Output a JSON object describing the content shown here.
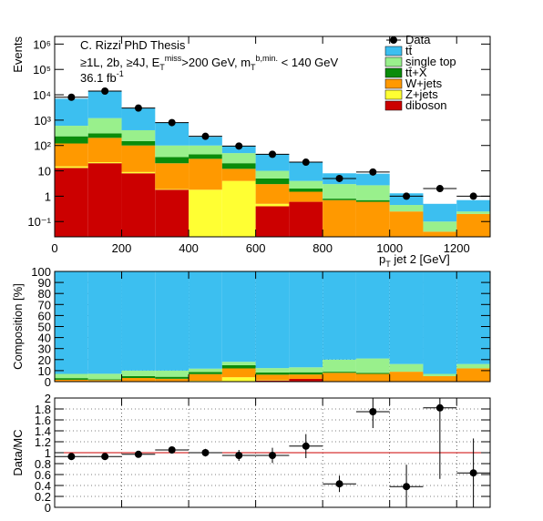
{
  "chart_data": [
    {
      "type": "stacked-histogram",
      "log": true,
      "ylabel": "Events",
      "xlabel": [
        {
          "text": "p"
        },
        {
          "text": "T",
          "shift": "sub"
        },
        {
          "text": " jet 2 [GeV]"
        }
      ],
      "annotations": [
        [
          {
            "text": "C. Rizzi PhD Thesis"
          }
        ],
        [
          {
            "text": "≥1L, 2b, ≥4J, E"
          },
          {
            "text": "T",
            "shift": "sub"
          },
          {
            "text": "miss",
            "shift": "sup"
          },
          {
            "text": ">200 GeV, m"
          },
          {
            "text": "T",
            "shift": "sub"
          },
          {
            "text": "b,min.",
            "shift": "sup"
          },
          {
            "text": " < 140 GeV"
          }
        ],
        [
          {
            "text": "36.1 fb"
          },
          {
            "text": "-1",
            "shift": "sup"
          }
        ]
      ],
      "bins": [
        0,
        100,
        200,
        300,
        400,
        500,
        600,
        700,
        800,
        900,
        1000,
        1100,
        1200,
        1300
      ],
      "xlim": [
        0,
        1300
      ],
      "xticks": [
        0,
        200,
        400,
        600,
        800,
        1000,
        1200
      ],
      "ylim": [
        0.025,
        2000000
      ],
      "yticks": [
        {
          "value": 0.1,
          "label": "10⁻¹"
        },
        1,
        10,
        {
          "value": 100,
          "label": "10²"
        },
        {
          "value": 1000,
          "label": "10³"
        },
        {
          "value": 10000,
          "label": "10⁴"
        },
        {
          "value": 100000,
          "label": "10⁵"
        },
        {
          "value": 1000000,
          "label": "10⁶"
        }
      ],
      "series": [
        {
          "name": "diboson",
          "color": "#cc0000",
          "values": [
            13,
            20,
            8,
            1.8,
            0,
            0,
            0.4,
            0.6,
            0,
            0,
            0,
            0,
            0
          ]
        },
        {
          "name": "Z+jets",
          "color": "#ffff33",
          "values": [
            2,
            2,
            1,
            0.1,
            1.8,
            4,
            0.1,
            0,
            0,
            0,
            0,
            0,
            0
          ]
        },
        {
          "name": "W+jets",
          "color": "#ff9900",
          "values": [
            105,
            178,
            91,
            18,
            28,
            8,
            2.5,
            0.9,
            0.7,
            0.6,
            0.25,
            0.04,
            0.2
          ]
        },
        {
          "name": "tt̄+X",
          "color": "#0a8c0a",
          "values": [
            110,
            100,
            50,
            15,
            15,
            8,
            2,
            0.5,
            0.1,
            0.1,
            0,
            0,
            0
          ]
        },
        {
          "name": "single top",
          "color": "#99f08c",
          "values": [
            370,
            900,
            250,
            65,
            55,
            30,
            5,
            2,
            2.2,
            2,
            0.2,
            0.06,
            0.05
          ]
        },
        {
          "name": "tt̄",
          "color": "#3cbff0",
          "values": [
            6400,
            12800,
            2600,
            700,
            120,
            45,
            35,
            18,
            5,
            5,
            0.85,
            0.4,
            0.45
          ]
        }
      ],
      "data": {
        "name": "Data",
        "color": "#000000",
        "values": [
          8000,
          14000,
          3000,
          800,
          230,
          95,
          45,
          22,
          5,
          9,
          1,
          2,
          1
        ]
      }
    },
    {
      "type": "stacked-histogram",
      "log": false,
      "grid": true,
      "ylabel": "Composition [%]",
      "xlim": [
        0,
        1300
      ],
      "ylim": [
        0,
        100
      ],
      "yticks": [
        0,
        10,
        20,
        30,
        40,
        50,
        60,
        70,
        80,
        90,
        100
      ],
      "series": [
        {
          "name": "diboson",
          "color": "#cc0000",
          "values": [
            0.2,
            0.15,
            0.3,
            0.3,
            0,
            0,
            1,
            2.5,
            0,
            0,
            0,
            0,
            0
          ]
        },
        {
          "name": "Z+jets",
          "color": "#ffff33",
          "values": [
            0,
            0,
            0,
            0,
            0.8,
            4,
            0.3,
            0,
            0,
            0,
            0,
            0,
            0
          ]
        },
        {
          "name": "W+jets",
          "color": "#ff9900",
          "values": [
            1.5,
            1.3,
            3,
            2.3,
            6,
            8,
            5,
            4,
            8,
            7,
            9,
            5,
            12
          ]
        },
        {
          "name": "tt̄+X",
          "color": "#0a8c0a",
          "values": [
            1.5,
            0.7,
            1.7,
            1.8,
            2,
            3,
            2,
            2,
            1,
            1,
            0,
            0,
            0
          ]
        },
        {
          "name": "single top",
          "color": "#99f08c",
          "values": [
            3.8,
            5,
            5,
            5.6,
            3,
            3,
            4,
            4.5,
            11,
            13,
            7,
            2,
            4
          ]
        },
        {
          "name": "tt̄",
          "color": "#3cbff0",
          "values": [
            93,
            92.85,
            90,
            90,
            88.2,
            82,
            87.7,
            87,
            80,
            79,
            84,
            93,
            84
          ]
        }
      ]
    },
    {
      "type": "ratio",
      "grid": true,
      "ylabel": "Data/MC",
      "xlim": [
        0,
        1300
      ],
      "ylim": [
        0,
        2
      ],
      "yticks": [
        0,
        0.2,
        0.4,
        0.6,
        0.8,
        1,
        1.2,
        1.4,
        1.6,
        1.8,
        2
      ],
      "reference": 1,
      "reference_color": "#cc0000",
      "values": [
        0.93,
        0.93,
        0.97,
        1.05,
        1.0,
        0.95,
        0.95,
        1.12,
        0.43,
        1.75,
        0.38,
        1.82,
        0.63
      ],
      "errors": [
        0.02,
        0.02,
        0.03,
        0.04,
        0.07,
        0.1,
        0.14,
        0.22,
        0.15,
        0.3,
        0.4,
        1.3,
        0.63
      ]
    }
  ]
}
